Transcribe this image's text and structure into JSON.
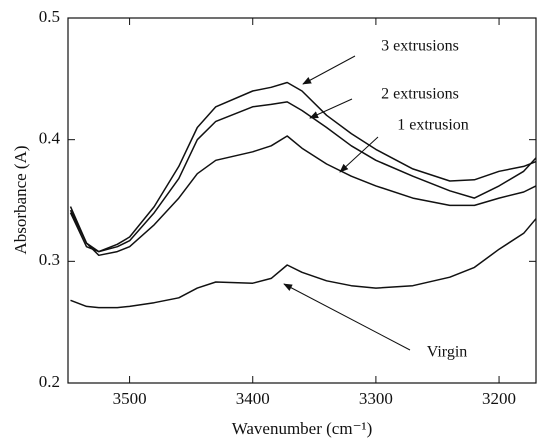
{
  "chart_data": {
    "type": "line",
    "xlabel": "Wavenumber (cm⁻¹)",
    "ylabel": "Absorbance (A)",
    "x": [
      3548,
      3535,
      3525,
      3510,
      3500,
      3480,
      3460,
      3445,
      3430,
      3400,
      3385,
      3372,
      3360,
      3340,
      3320,
      3300,
      3270,
      3240,
      3220,
      3200,
      3180,
      3170
    ],
    "series": [
      {
        "name": "Virgin",
        "color": "#111111",
        "values": [
          0.268,
          0.263,
          0.262,
          0.262,
          0.263,
          0.266,
          0.27,
          0.278,
          0.283,
          0.282,
          0.286,
          0.297,
          0.291,
          0.284,
          0.28,
          0.278,
          0.28,
          0.287,
          0.295,
          0.31,
          0.323,
          0.335
        ]
      },
      {
        "name": "1 extrusion",
        "color": "#111111",
        "values": [
          0.342,
          0.315,
          0.305,
          0.308,
          0.312,
          0.33,
          0.352,
          0.372,
          0.383,
          0.39,
          0.395,
          0.403,
          0.393,
          0.38,
          0.37,
          0.362,
          0.352,
          0.346,
          0.346,
          0.352,
          0.357,
          0.362
        ]
      },
      {
        "name": "2 extrusions",
        "color": "#111111",
        "values": [
          0.34,
          0.312,
          0.308,
          0.312,
          0.317,
          0.34,
          0.368,
          0.4,
          0.415,
          0.427,
          0.429,
          0.431,
          0.424,
          0.41,
          0.395,
          0.383,
          0.37,
          0.358,
          0.352,
          0.362,
          0.374,
          0.385
        ]
      },
      {
        "name": "3 extrusions",
        "color": "#111111",
        "values": [
          0.345,
          0.315,
          0.308,
          0.314,
          0.32,
          0.345,
          0.378,
          0.41,
          0.427,
          0.44,
          0.443,
          0.447,
          0.44,
          0.42,
          0.405,
          0.392,
          0.376,
          0.366,
          0.367,
          0.374,
          0.378,
          0.382
        ]
      }
    ],
    "xlim": [
      3550,
      3170
    ],
    "xticks": [
      3500,
      3400,
      3300,
      3200
    ],
    "ylim": [
      0.2,
      0.5
    ],
    "yticks": [
      0.2,
      0.3,
      0.4,
      0.5
    ],
    "grid": false
  }
}
